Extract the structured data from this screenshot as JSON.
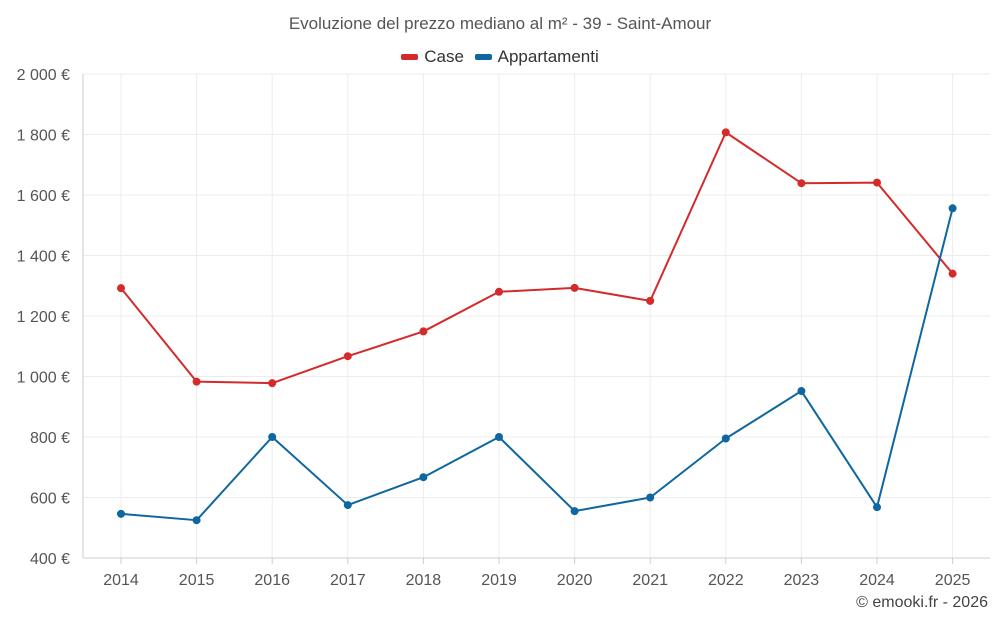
{
  "chart_data": {
    "type": "line",
    "title": "Evoluzione del prezzo mediano al m² - 39 - Saint-Amour",
    "xlabel": "",
    "ylabel": "",
    "x": [
      "2014",
      "2015",
      "2016",
      "2017",
      "2018",
      "2019",
      "2020",
      "2021",
      "2022",
      "2023",
      "2024",
      "2025"
    ],
    "ylim": [
      400,
      2000
    ],
    "yticks": [
      400,
      600,
      800,
      1000,
      1200,
      1400,
      1600,
      1800,
      2000
    ],
    "ytick_labels": [
      "400 €",
      "600 €",
      "800 €",
      "1 000 €",
      "1 200 €",
      "1 400 €",
      "1 600 €",
      "1 800 €",
      "2 000 €"
    ],
    "grid": true,
    "legend_position": "top-center",
    "series": [
      {
        "name": "Case",
        "color": "#d42a2a",
        "values": [
          1292,
          983,
          978,
          1067,
          1149,
          1280,
          1293,
          1250,
          1807,
          1639,
          1641,
          1340
        ]
      },
      {
        "name": "Appartamenti",
        "color": "#0e679e",
        "values": [
          546,
          525,
          800,
          575,
          667,
          800,
          555,
          600,
          795,
          952,
          568,
          1556
        ]
      }
    ]
  },
  "credit": "© emooki.fr - 2026"
}
